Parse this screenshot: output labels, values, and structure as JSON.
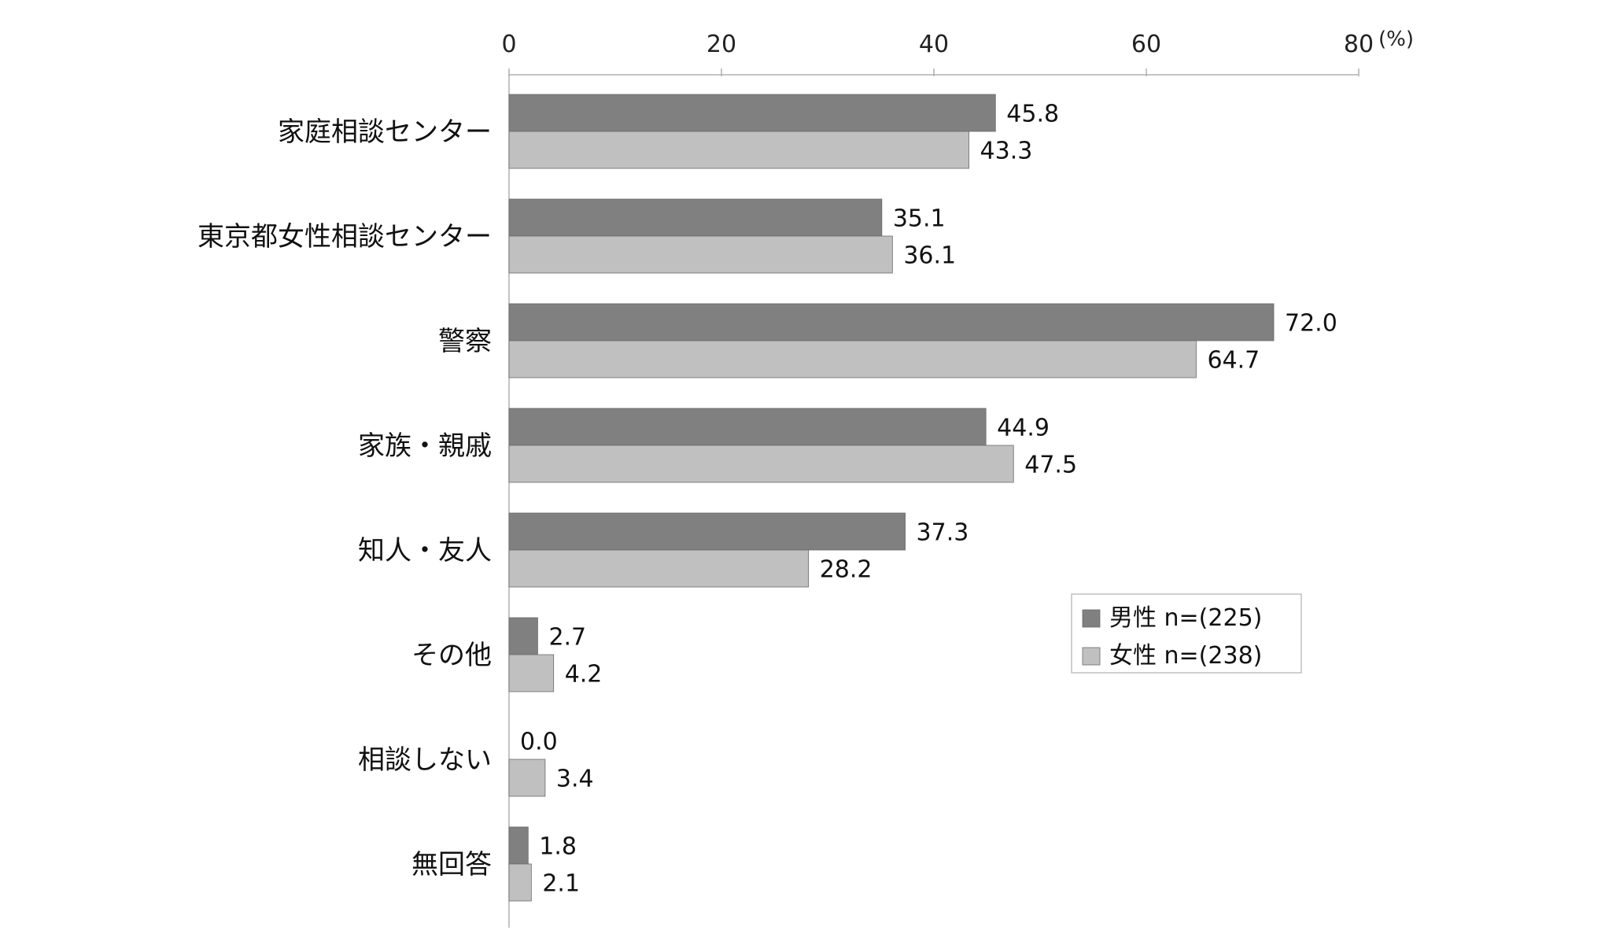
{
  "chart_data": {
    "type": "bar",
    "orientation": "horizontal",
    "categories": [
      "家庭相談センター",
      "東京都女性相談センター",
      "警察",
      "家族・親戚",
      "知人・友人",
      "その他",
      "相談しない",
      "無回答"
    ],
    "series": [
      {
        "name": "男性 n=(225)",
        "color": "#808080",
        "values": [
          45.8,
          35.1,
          72.0,
          44.9,
          37.3,
          2.7,
          0.0,
          1.8
        ]
      },
      {
        "name": "女性 n=(238)",
        "color": "#c0c0c0",
        "values": [
          43.3,
          36.1,
          64.7,
          47.5,
          28.2,
          4.2,
          3.4,
          2.1
        ]
      }
    ],
    "xlim": [
      0,
      80
    ],
    "xticks": [
      0,
      20,
      40,
      60,
      80
    ],
    "xtick_labels": [
      "0",
      "20",
      "40",
      "60",
      "80"
    ],
    "unit_label": "(%)",
    "axis_position": "top",
    "legend_position": "right-center",
    "grid": false
  }
}
